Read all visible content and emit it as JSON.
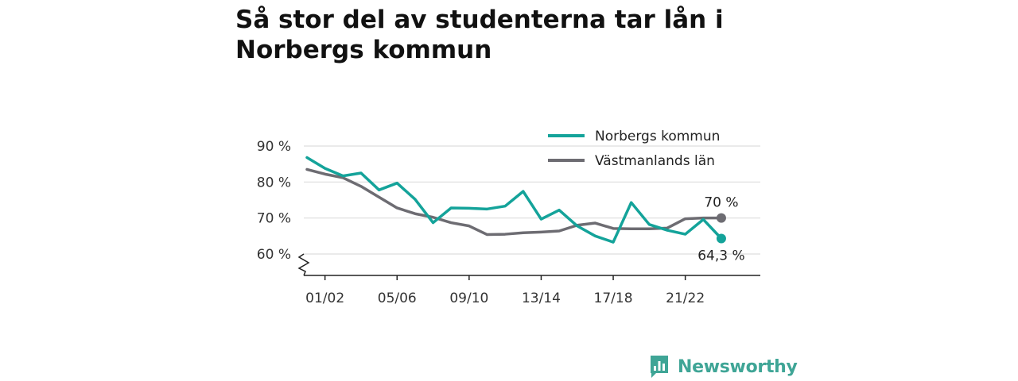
{
  "title": "Så stor del av studenterna tar lån i Norbergs kommun",
  "brand": {
    "name": "Newsworthy",
    "color": "#3fa596"
  },
  "colors": {
    "norberg": "#14a39a",
    "vastmanland": "#6d6c72",
    "grid": "#dddddd",
    "axis": "#222222"
  },
  "chart_data": {
    "type": "line",
    "x": [
      "00/01",
      "01/02",
      "02/03",
      "03/04",
      "04/05",
      "05/06",
      "06/07",
      "07/08",
      "08/09",
      "09/10",
      "10/11",
      "11/12",
      "12/13",
      "13/14",
      "14/15",
      "15/16",
      "16/17",
      "17/18",
      "18/19",
      "19/20",
      "20/21",
      "21/22",
      "22/23",
      "23/24"
    ],
    "x_tick_labels": [
      "01/02",
      "05/06",
      "09/10",
      "13/14",
      "17/18",
      "21/22"
    ],
    "y_tick_labels": [
      "60 %",
      "70 %",
      "80 %",
      "90 %"
    ],
    "y_ticks": [
      60,
      70,
      80,
      90
    ],
    "ylim": [
      53.5,
      91
    ],
    "y_axis_break": true,
    "legend_position": "top-right",
    "series": [
      {
        "name": "Norbergs kommun",
        "color": "#14a39a",
        "values": [
          86.8,
          83.8,
          81.7,
          82.5,
          77.8,
          79.7,
          75.2,
          68.7,
          72.8,
          72.7,
          72.5,
          73.3,
          77.4,
          69.7,
          72.2,
          67.8,
          65.0,
          63.3,
          74.3,
          68.2,
          66.6,
          65.5,
          69.6,
          64.3
        ],
        "end_label": "64,3 %"
      },
      {
        "name": "Västmanlands län",
        "color": "#6d6c72",
        "values": [
          83.5,
          82.2,
          81.2,
          78.8,
          75.8,
          72.8,
          71.2,
          70.2,
          68.7,
          67.8,
          65.4,
          65.5,
          65.9,
          66.1,
          66.4,
          68.0,
          68.6,
          67.1,
          67.0,
          67.0,
          67.2,
          69.8,
          70.0,
          70.0
        ],
        "end_label": "70 %"
      }
    ]
  }
}
